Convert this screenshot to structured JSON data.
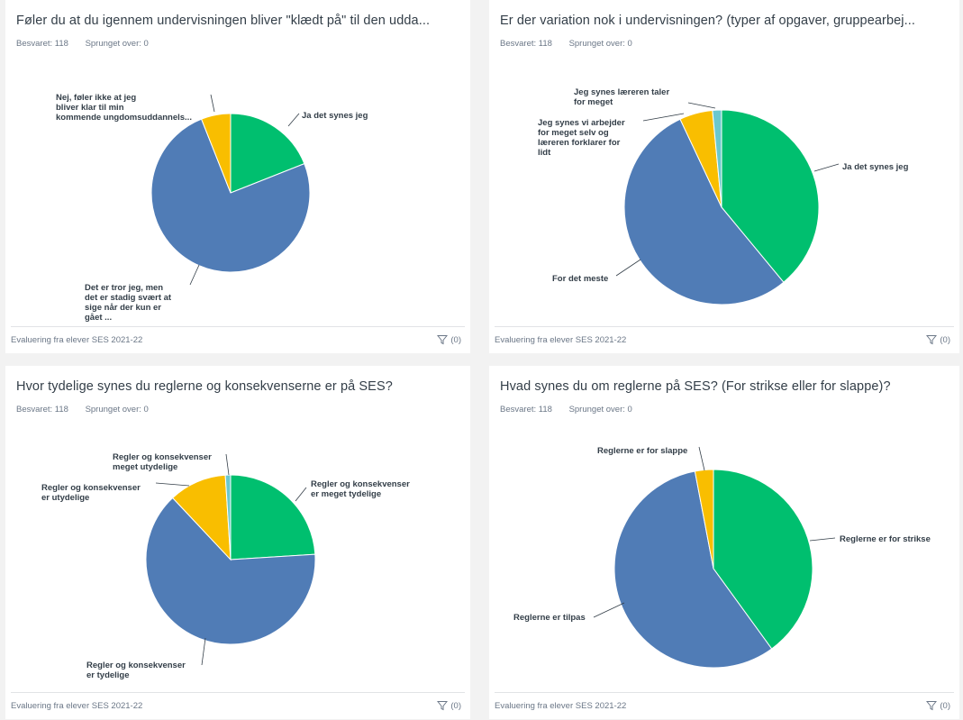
{
  "colors": {
    "green": "#00bf6f",
    "blue": "#507cb6",
    "yellow": "#f9be00",
    "teal": "#6bc8cd"
  },
  "cards": [
    {
      "title": "Føler du at du igennem undervisningen bliver \"klædt på\" til den udda...",
      "answered": "Besvaret: 118",
      "skipped": "Sprunget over: 0",
      "footer": "Evaluering fra elever SES 2021-22",
      "filter_count": "(0)"
    },
    {
      "title": "Er der variation nok i undervisningen? (typer af opgaver, gruppearbej...",
      "answered": "Besvaret: 118",
      "skipped": "Sprunget over: 0",
      "footer": "Evaluering fra elever SES 2021-22",
      "filter_count": "(0)"
    },
    {
      "title": "Hvor tydelige synes du reglerne og konsekvenserne er på SES?",
      "answered": "Besvaret: 118",
      "skipped": "Sprunget over: 0",
      "footer": "Evaluering fra elever SES 2021-22",
      "filter_count": "(0)"
    },
    {
      "title": "Hvad synes du om reglerne på SES? (For strikse eller for slappe)?",
      "answered": "Besvaret: 118",
      "skipped": "Sprunget over: 0",
      "footer": "Evaluering fra elever SES 2021-22",
      "filter_count": "(0)"
    }
  ],
  "chart_data": [
    {
      "type": "pie",
      "slices": [
        {
          "label": "Ja det synes jeg",
          "lines": [
            "Ja det synes jeg"
          ],
          "value": 19,
          "color": "#00bf6f"
        },
        {
          "label": "Det er tror jeg, men det er stadig svært at sige når der kun er gået ...",
          "lines": [
            "Det er tror jeg, men",
            "det er stadig svært at",
            "sige når der kun er",
            "gået ..."
          ],
          "value": 75,
          "color": "#507cb6"
        },
        {
          "label": "Nej, føler ikke at jeg bliver klar til min kommende ungdomsuddannels...",
          "lines": [
            "Nej, føler ikke at jeg",
            "bliver klar til min",
            "kommende ungdomsuddannels..."
          ],
          "value": 6,
          "color": "#f9be00"
        }
      ]
    },
    {
      "type": "pie",
      "slices": [
        {
          "label": "Ja det synes jeg",
          "lines": [
            "Ja det synes jeg"
          ],
          "value": 39,
          "color": "#00bf6f"
        },
        {
          "label": "For det meste",
          "lines": [
            "For det meste"
          ],
          "value": 54,
          "color": "#507cb6"
        },
        {
          "label": "Jeg synes vi arbejder for meget selv og læreren forklarer for lidt",
          "lines": [
            "Jeg synes vi arbejder",
            "for meget selv og",
            "læreren forklarer for",
            "lidt"
          ],
          "value": 5.5,
          "color": "#f9be00"
        },
        {
          "label": "Jeg synes læreren taler for meget",
          "lines": [
            "Jeg synes læreren taler",
            "for meget"
          ],
          "value": 1.5,
          "color": "#6bc8cd"
        }
      ]
    },
    {
      "type": "pie",
      "slices": [
        {
          "label": "Regler og konsekvenser er meget tydelige",
          "lines": [
            "Regler og konsekvenser",
            "er meget tydelige"
          ],
          "value": 24,
          "color": "#00bf6f"
        },
        {
          "label": "Regler og konsekvenser er tydelige",
          "lines": [
            "Regler og konsekvenser",
            "er tydelige"
          ],
          "value": 64,
          "color": "#507cb6"
        },
        {
          "label": "Regler og konsekvenser er utydelige",
          "lines": [
            "Regler og konsekvenser",
            "er utydelige"
          ],
          "value": 11,
          "color": "#f9be00"
        },
        {
          "label": "Regler og konsekvenser meget utydelige",
          "lines": [
            "Regler og konsekvenser",
            "meget utydelige"
          ],
          "value": 1,
          "color": "#6bc8cd"
        }
      ]
    },
    {
      "type": "pie",
      "slices": [
        {
          "label": "Reglerne er for strikse",
          "lines": [
            "Reglerne er for strikse"
          ],
          "value": 40,
          "color": "#00bf6f"
        },
        {
          "label": "Reglerne er tilpas",
          "lines": [
            "Reglerne er tilpas"
          ],
          "value": 57,
          "color": "#507cb6"
        },
        {
          "label": "Reglerne er for slappe",
          "lines": [
            "Reglerne er for slappe"
          ],
          "value": 3,
          "color": "#f9be00"
        }
      ]
    }
  ]
}
